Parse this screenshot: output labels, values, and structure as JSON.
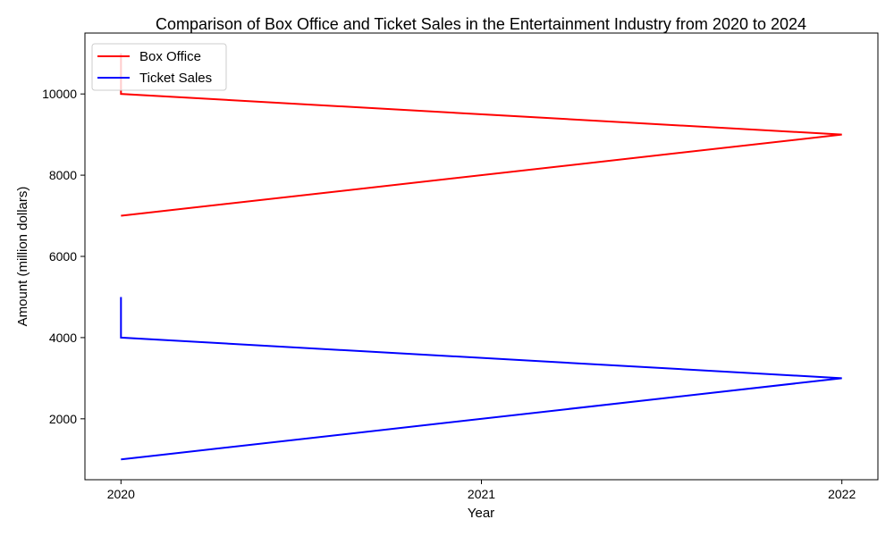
{
  "chart_data": {
    "type": "line",
    "title": "Comparison of Box Office and Ticket Sales in the Entertainment Industry from 2020 to 2024",
    "xlabel": "Year",
    "ylabel": "Amount (million dollars)",
    "xlim": [
      2019.9,
      2022.1
    ],
    "ylim": [
      500,
      11500
    ],
    "xticks": [
      2020,
      2021,
      2022
    ],
    "xtick_labels": [
      "2020",
      "2021",
      "2022"
    ],
    "yticks": [
      2000,
      4000,
      6000,
      8000,
      10000
    ],
    "ytick_labels": [
      "2000",
      "4000",
      "6000",
      "8000",
      "10000"
    ],
    "legend_position": "upper-left",
    "grid": false,
    "series": [
      {
        "name": "Box Office",
        "color": "#ff0000",
        "points": [
          [
            2020,
            7000
          ],
          [
            2022,
            9000
          ],
          [
            2020,
            10000
          ],
          [
            2020,
            11000
          ]
        ]
      },
      {
        "name": "Ticket Sales",
        "color": "#0000ff",
        "points": [
          [
            2020,
            1000
          ],
          [
            2022,
            3000
          ],
          [
            2020,
            4000
          ],
          [
            2020,
            5000
          ]
        ]
      }
    ]
  }
}
